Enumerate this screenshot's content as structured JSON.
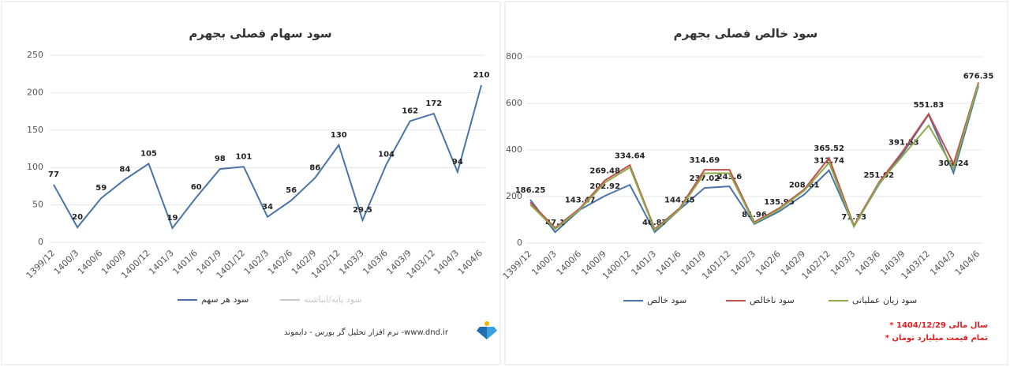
{
  "chart_data": [
    {
      "type": "line",
      "title": "سود سهام فصلی بجهرم",
      "categories": [
        "1399/12",
        "1400/3",
        "1400/6",
        "1400/9",
        "1400/12",
        "1401/3",
        "1401/6",
        "1401/9",
        "1401/12",
        "1402/3",
        "1402/6",
        "1402/9",
        "1402/12",
        "1403/3",
        "1403/6",
        "1403/9",
        "1403/12",
        "1404/3",
        "1404/6"
      ],
      "series": [
        {
          "name": "سود هر سهم",
          "color": "#4a74a8",
          "values": [
            77,
            20,
            59,
            84,
            105,
            19,
            60,
            98,
            101,
            34,
            56,
            86,
            130,
            29.5,
            104,
            162,
            172,
            94,
            210
          ],
          "data_labels": true
        },
        {
          "name": "سود پایه/انباشته",
          "color": "#c8c8c8",
          "values": [
            null,
            null,
            null,
            null,
            null,
            null,
            null,
            null,
            null,
            null,
            null,
            null,
            null,
            null,
            null,
            null,
            null,
            null,
            null
          ]
        }
      ],
      "ylim": [
        0,
        250
      ],
      "yticks": [
        0,
        50,
        100,
        150,
        200,
        250
      ],
      "grid": true
    },
    {
      "type": "line",
      "title": "سود خالص فصلی بجهرم",
      "categories": [
        "1399/12",
        "1400/3",
        "1400/6",
        "1400/9",
        "1400/12",
        "1401/3",
        "1401/6",
        "1401/9",
        "1401/12",
        "1402/3",
        "1402/6",
        "1402/9",
        "1402/12",
        "1403/3",
        "1403/6",
        "1403/9",
        "1403/12",
        "1404/3",
        "1404/6"
      ],
      "series": [
        {
          "name": "سود خالص",
          "color": "#4a74a8",
          "values": [
            186.25,
            47.1,
            143.47,
            202.92,
            250,
            46.87,
            144.35,
            237.02,
            243.6,
            81.96,
            135.95,
            208.61,
            312.74,
            71.33,
            251.02,
            391.53,
            551.83,
            301.24,
            676.35
          ],
          "value_labels": [
            "186.25",
            "47.1",
            "143.47",
            "202.92",
            null,
            "46.87",
            "144.35",
            "237.02",
            "243.6",
            "81.96",
            "135.95",
            "208.61",
            "312.74",
            "71.33",
            "251.02",
            "391.53",
            "551.83",
            "301.24",
            "676.35"
          ]
        },
        {
          "name": "سود ناخالص",
          "color": "#c0504d",
          "values": [
            175,
            65,
            150,
            269.48,
            334.64,
            60,
            150,
            314.69,
            315,
            90,
            150,
            230,
            365.52,
            75,
            260,
            400,
            555,
            340,
            690
          ],
          "value_labels": [
            null,
            null,
            null,
            "269.48",
            "334.64",
            null,
            null,
            "314.69",
            null,
            null,
            null,
            null,
            "365.52",
            null,
            null,
            null,
            null,
            null,
            null
          ]
        },
        {
          "name": "سود زیان عملیاتی",
          "color": "#8faa4b",
          "values": [
            165,
            60,
            145,
            260,
            325,
            55,
            145,
            300,
            300,
            85,
            145,
            225,
            345,
            70,
            255,
            380,
            505,
            320,
            685
          ]
        }
      ],
      "ylim": [
        0,
        800
      ],
      "yticks": [
        0,
        200,
        400,
        600,
        800
      ],
      "grid": true
    }
  ],
  "footer": {
    "brand": "نرم افزار تحلیل گر بورس - دایموند -www.dnd.ir",
    "notes": [
      "* سال مالی 1404/12/29",
      "* تمام قیمت میلیارد تومان"
    ]
  }
}
